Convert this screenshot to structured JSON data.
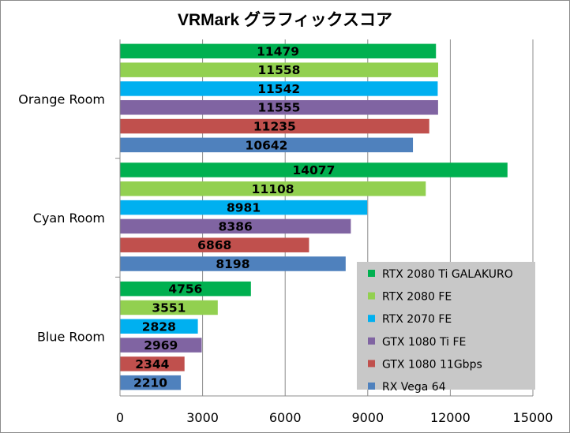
{
  "chart_data": {
    "type": "bar",
    "orientation": "horizontal",
    "title": "VRMark グラフィックスコア",
    "categories": [
      "Orange Room",
      "Cyan Room",
      "Blue Room"
    ],
    "series": [
      {
        "name": "RTX 2080 Ti GALAKURO",
        "color": "#00b050",
        "values": [
          11479,
          14077,
          4756
        ]
      },
      {
        "name": "RTX 2080 FE",
        "color": "#92d050",
        "values": [
          11558,
          11108,
          3551
        ]
      },
      {
        "name": "RTX 2070 FE",
        "color": "#00b0f0",
        "values": [
          11542,
          8981,
          2828
        ]
      },
      {
        "name": "GTX 1080 Ti FE",
        "color": "#8064a2",
        "values": [
          11555,
          8386,
          2969
        ]
      },
      {
        "name": "GTX 1080 11Gbps",
        "color": "#c0504d",
        "values": [
          11235,
          6868,
          2344
        ]
      },
      {
        "name": "RX Vega 64",
        "color": "#4f81bd",
        "values": [
          10642,
          8198,
          2210
        ]
      }
    ],
    "x_ticks": [
      "0",
      "3000",
      "6000",
      "9000",
      "12000",
      "15000"
    ],
    "xlim": [
      0,
      15000
    ],
    "grid": true,
    "legend_position": "bottom-right",
    "legend_background": "#c8c8c8"
  }
}
